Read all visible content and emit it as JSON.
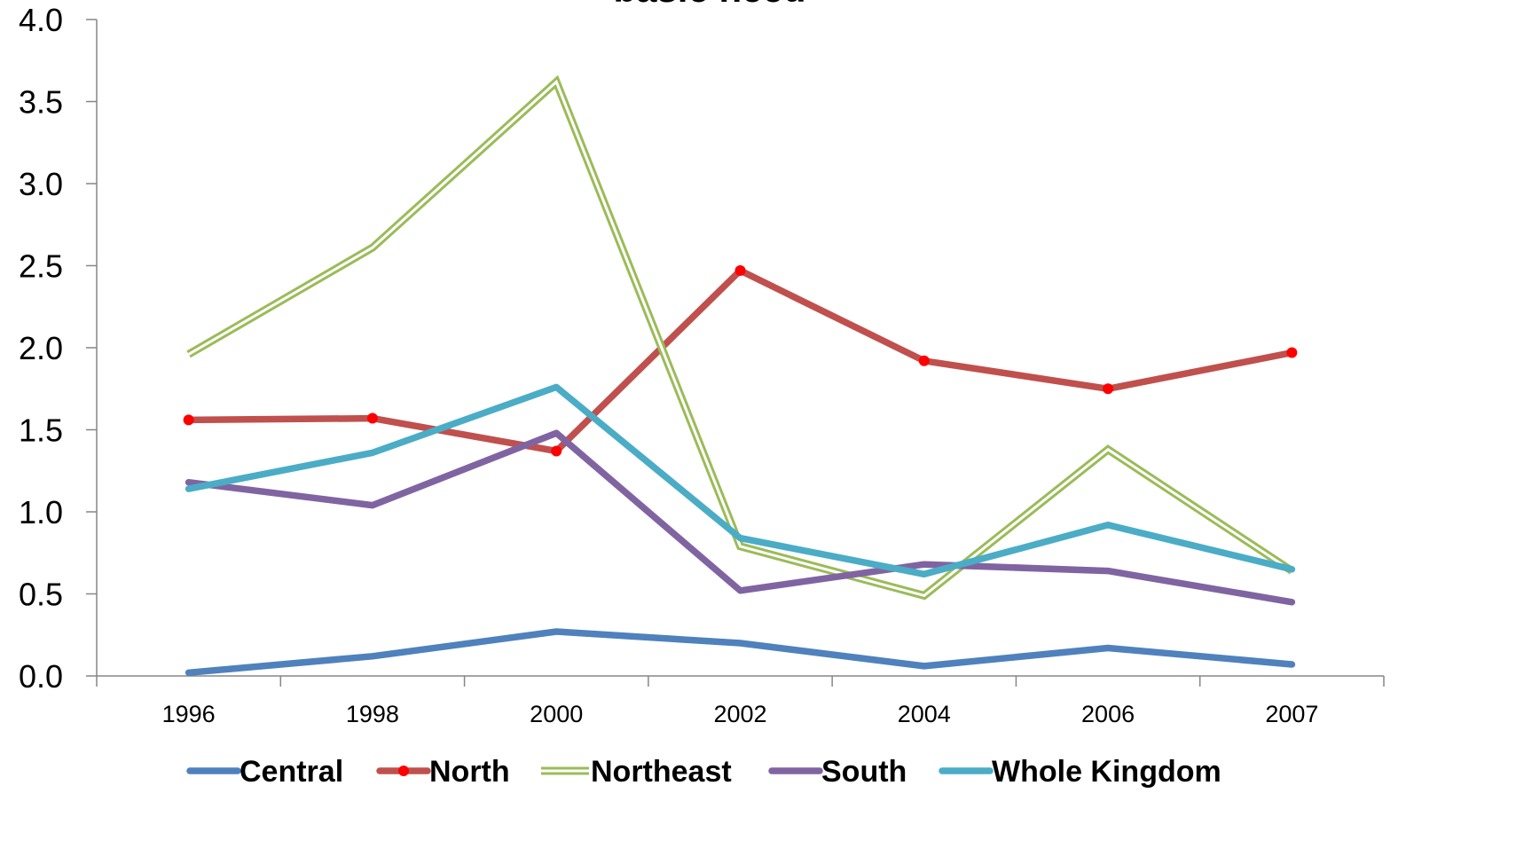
{
  "chart_data": {
    "type": "line",
    "title": "basic need",
    "xlabel": "",
    "ylabel": "",
    "categories": [
      "1996",
      "1998",
      "2000",
      "2002",
      "2004",
      "2006",
      "2007"
    ],
    "ylim": [
      0,
      4
    ],
    "y_ticks": [
      "0.0",
      "0.5",
      "1.0",
      "1.5",
      "2.0",
      "2.5",
      "3.0",
      "3.5",
      "4.0"
    ],
    "grid": false,
    "legend_position": "bottom",
    "series": [
      {
        "name": "Central",
        "values": [
          0.02,
          0.12,
          0.27,
          0.2,
          0.06,
          0.17,
          0.07
        ],
        "color": "#4f81bd",
        "style": "solid"
      },
      {
        "name": "North",
        "values": [
          1.56,
          1.57,
          1.37,
          2.47,
          1.92,
          1.75,
          1.97
        ],
        "color": "#c0504d",
        "style": "markers",
        "marker_color": "#ff0000"
      },
      {
        "name": "Northeast",
        "values": [
          1.96,
          2.61,
          3.62,
          0.79,
          0.49,
          1.38,
          0.64
        ],
        "color": "#9bbb59",
        "style": "double"
      },
      {
        "name": "South",
        "values": [
          1.18,
          1.04,
          1.48,
          0.52,
          0.68,
          0.64,
          0.45
        ],
        "color": "#8064a2",
        "style": "solid"
      },
      {
        "name": "Whole Kingdom",
        "values": [
          1.14,
          1.36,
          1.76,
          0.84,
          0.62,
          0.92,
          0.65
        ],
        "color": "#4bacc6",
        "style": "solid"
      }
    ]
  }
}
